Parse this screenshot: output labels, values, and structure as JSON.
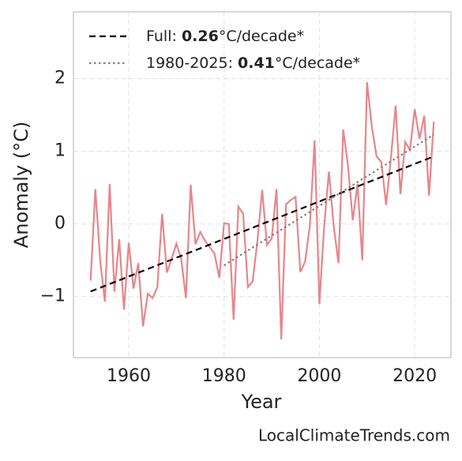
{
  "chart_data": {
    "type": "line",
    "xlabel": "Year",
    "ylabel": "Anomaly (°C)",
    "footer": "LocalClimateTrends.com",
    "xlim": [
      1948.4,
      2027.6
    ],
    "xticks": [
      1960,
      1980,
      2000,
      2020
    ],
    "ylim": [
      -1.84,
      2.92
    ],
    "yticks": [
      {
        "value": -1,
        "label": "−1"
      },
      0,
      1,
      2
    ],
    "grid": true,
    "legend": "upper left",
    "series": [
      {
        "color": "#e8858a",
        "style": "solid",
        "x": [
          1952,
          1953,
          1954,
          1955,
          1956,
          1957,
          1958,
          1959,
          1960,
          1961,
          1962,
          1963,
          1964,
          1965,
          1966,
          1967,
          1968,
          1969,
          1970,
          1971,
          1972,
          1973,
          1974,
          1975,
          1976,
          1977,
          1978,
          1979,
          1980,
          1981,
          1982,
          1983,
          1984,
          1985,
          1986,
          1987,
          1988,
          1989,
          1990,
          1991,
          1992,
          1993,
          1994,
          1995,
          1996,
          1997,
          1998,
          1999,
          2000,
          2001,
          2002,
          2003,
          2004,
          2005,
          2006,
          2007,
          2008,
          2009,
          2010,
          2011,
          2012,
          2013,
          2014,
          2015,
          2016,
          2017,
          2018,
          2019,
          2020,
          2021,
          2022,
          2023,
          2024
        ],
        "values": [
          -0.78,
          0.48,
          -0.5,
          -1.07,
          0.55,
          -0.93,
          -0.21,
          -1.18,
          -0.26,
          -0.89,
          -0.54,
          -1.41,
          -0.96,
          -1.02,
          -0.87,
          0.14,
          -0.67,
          -0.48,
          -0.27,
          -0.48,
          -1.02,
          0.54,
          -0.28,
          -0.11,
          -0.23,
          -0.32,
          -0.41,
          -0.74,
          0.01,
          0.0,
          -1.32,
          0.24,
          0.14,
          -0.87,
          -0.79,
          -0.23,
          0.47,
          -0.29,
          -0.2,
          0.48,
          -1.59,
          0.27,
          0.33,
          0.37,
          -0.66,
          -0.52,
          -0.02,
          1.15,
          -1.1,
          -0.03,
          0.72,
          -0.03,
          -0.54,
          1.3,
          0.8,
          0.05,
          0.55,
          -0.5,
          1.95,
          1.34,
          0.93,
          0.85,
          0.26,
          0.91,
          1.63,
          0.41,
          1.13,
          1.02,
          1.58,
          1.17,
          1.49,
          0.39,
          1.41
        ]
      },
      {
        "name": "Full: 0.26°C/decade*",
        "color": "#000000",
        "style": "dashed",
        "x": [
          1952,
          2024
        ],
        "values": [
          -0.93,
          0.93
        ]
      },
      {
        "name": "1980-2025: 0.41°C/decade*",
        "color": "#808080",
        "style": "dotted",
        "x": [
          1980,
          2024
        ],
        "values": [
          -0.57,
          1.23
        ]
      }
    ]
  }
}
